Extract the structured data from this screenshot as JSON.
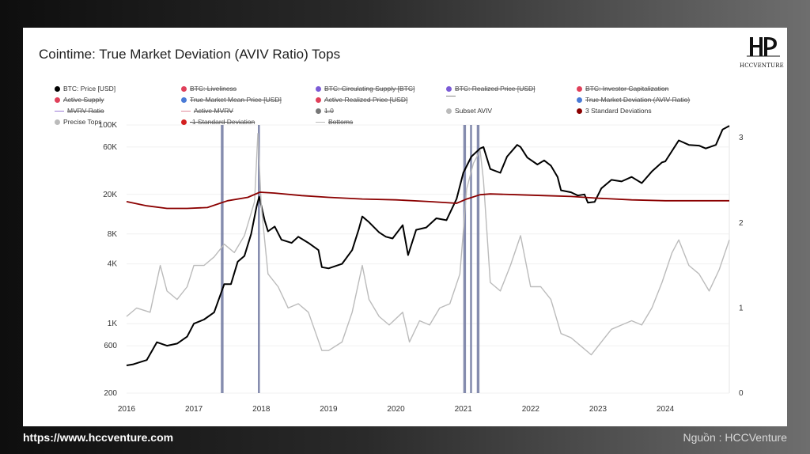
{
  "title": "Cointime: True Market Deviation (AVIV Ratio) Tops",
  "brand": {
    "logo_text": "HCCVENTURE",
    "url": "https://www.hccventure.com",
    "source": "Nguồn : HCCVenture"
  },
  "legend": [
    {
      "label": "BTC: Price [USD]",
      "color": "#000000",
      "active": true,
      "kind": "dot"
    },
    {
      "label": "BTC: Liveliness",
      "color": "#e0405a",
      "active": false,
      "kind": "dot"
    },
    {
      "label": "BTC: Circulating Supply [BTC]",
      "color": "#7b5bd6",
      "active": false,
      "kind": "dot"
    },
    {
      "label": "BTC: Realized Price [USD]",
      "color": "#7b5bd6",
      "active": false,
      "kind": "dot"
    },
    {
      "label": "BTC: Investor Capitalization",
      "color": "#e0405a",
      "active": false,
      "kind": "dot"
    },
    {
      "label": "Active Supply",
      "color": "#e0405a",
      "active": false,
      "kind": "dot"
    },
    {
      "label": "True Market Mean Price [USD]",
      "color": "#4a7ad6",
      "active": false,
      "kind": "dot"
    },
    {
      "label": "Active Realized Price [USD]",
      "color": "#e0405a",
      "active": false,
      "kind": "dot"
    },
    {
      "label": "",
      "color": "#888888",
      "active": false,
      "kind": "line"
    },
    {
      "label": "True Market Deviation (AVIV Ratio)",
      "color": "#4a7ad6",
      "active": false,
      "kind": "dot"
    },
    {
      "label": "MVRV Ratio",
      "color": "#9a7ad6",
      "active": false,
      "kind": "line"
    },
    {
      "label": "Active MVRV",
      "color": "#e08a9a",
      "active": false,
      "kind": "line"
    },
    {
      "label": "1.0",
      "color": "#777777",
      "active": false,
      "kind": "dot"
    },
    {
      "label": "Subset AVIV",
      "color": "#bbbbbb",
      "active": true,
      "kind": "dot"
    },
    {
      "label": "3 Standard Deviations",
      "color": "#8b0000",
      "active": true,
      "kind": "dot"
    },
    {
      "label": "Precise Tops",
      "color": "#bbbbbb",
      "active": true,
      "kind": "dot"
    },
    {
      "label": "-1 Standard Deviation",
      "color": "#d32020",
      "active": false,
      "kind": "dot"
    },
    {
      "label": "Bottoms",
      "color": "#bbbbbb",
      "active": false,
      "kind": "line"
    }
  ],
  "chart_data": {
    "type": "line",
    "x_ticks": [
      "2016",
      "2017",
      "2018",
      "2019",
      "2020",
      "2021",
      "2022",
      "2023",
      "2024"
    ],
    "xlim": [
      2016.0,
      2024.95
    ],
    "left_axis": {
      "scale": "log",
      "ticks": [
        "100K",
        "60K",
        "20K",
        "8K",
        "4K",
        "1K",
        "600",
        "200"
      ],
      "tick_values": [
        100000,
        60000,
        20000,
        8000,
        4000,
        1000,
        600,
        200
      ],
      "ylim": [
        200,
        100000
      ]
    },
    "right_axis": {
      "scale": "linear",
      "ticks": [
        "3",
        "2",
        "1",
        "0"
      ],
      "tick_values": [
        3,
        2,
        1,
        0
      ],
      "ylim": [
        0,
        3.15
      ]
    },
    "series": [
      {
        "name": "BTC: Price [USD]",
        "color": "#000000",
        "axis": "left",
        "points": [
          [
            2016.0,
            380
          ],
          [
            2016.1,
            390
          ],
          [
            2016.3,
            430
          ],
          [
            2016.45,
            650
          ],
          [
            2016.6,
            600
          ],
          [
            2016.75,
            630
          ],
          [
            2016.9,
            740
          ],
          [
            2017.0,
            1000
          ],
          [
            2017.15,
            1100
          ],
          [
            2017.3,
            1300
          ],
          [
            2017.45,
            2500
          ],
          [
            2017.55,
            2500
          ],
          [
            2017.65,
            4200
          ],
          [
            2017.75,
            4800
          ],
          [
            2017.85,
            8000
          ],
          [
            2017.93,
            15000
          ],
          [
            2017.97,
            19000
          ],
          [
            2018.05,
            11000
          ],
          [
            2018.1,
            8500
          ],
          [
            2018.2,
            9500
          ],
          [
            2018.3,
            7000
          ],
          [
            2018.45,
            6500
          ],
          [
            2018.55,
            7500
          ],
          [
            2018.7,
            6500
          ],
          [
            2018.85,
            5500
          ],
          [
            2018.9,
            3700
          ],
          [
            2019.0,
            3600
          ],
          [
            2019.2,
            4000
          ],
          [
            2019.35,
            5500
          ],
          [
            2019.45,
            9000
          ],
          [
            2019.5,
            12000
          ],
          [
            2019.6,
            10500
          ],
          [
            2019.75,
            8300
          ],
          [
            2019.85,
            7500
          ],
          [
            2019.95,
            7200
          ],
          [
            2020.1,
            9800
          ],
          [
            2020.18,
            4900
          ],
          [
            2020.3,
            8800
          ],
          [
            2020.45,
            9300
          ],
          [
            2020.6,
            11500
          ],
          [
            2020.75,
            11000
          ],
          [
            2020.9,
            18000
          ],
          [
            2021.0,
            33000
          ],
          [
            2021.12,
            48000
          ],
          [
            2021.25,
            58000
          ],
          [
            2021.3,
            60000
          ],
          [
            2021.4,
            36000
          ],
          [
            2021.55,
            33000
          ],
          [
            2021.65,
            48000
          ],
          [
            2021.8,
            63000
          ],
          [
            2021.85,
            60000
          ],
          [
            2021.95,
            47000
          ],
          [
            2022.1,
            40000
          ],
          [
            2022.2,
            44000
          ],
          [
            2022.3,
            39000
          ],
          [
            2022.4,
            30000
          ],
          [
            2022.45,
            22000
          ],
          [
            2022.6,
            21000
          ],
          [
            2022.7,
            19500
          ],
          [
            2022.8,
            20000
          ],
          [
            2022.85,
            16500
          ],
          [
            2022.95,
            16800
          ],
          [
            2023.05,
            23000
          ],
          [
            2023.2,
            28000
          ],
          [
            2023.35,
            27000
          ],
          [
            2023.5,
            30000
          ],
          [
            2023.65,
            26000
          ],
          [
            2023.8,
            34000
          ],
          [
            2023.95,
            42000
          ],
          [
            2024.0,
            43000
          ],
          [
            2024.15,
            62000
          ],
          [
            2024.2,
            70000
          ],
          [
            2024.35,
            63000
          ],
          [
            2024.5,
            62000
          ],
          [
            2024.6,
            58000
          ],
          [
            2024.75,
            63000
          ],
          [
            2024.85,
            90000
          ],
          [
            2024.95,
            98000
          ]
        ]
      },
      {
        "name": "Subset AVIV",
        "color": "#bbbbbb",
        "axis": "right",
        "points": [
          [
            2016.0,
            0.9
          ],
          [
            2016.15,
            1.0
          ],
          [
            2016.35,
            0.95
          ],
          [
            2016.5,
            1.5
          ],
          [
            2016.6,
            1.2
          ],
          [
            2016.75,
            1.1
          ],
          [
            2016.9,
            1.25
          ],
          [
            2017.0,
            1.5
          ],
          [
            2017.15,
            1.5
          ],
          [
            2017.3,
            1.6
          ],
          [
            2017.45,
            1.75
          ],
          [
            2017.6,
            1.65
          ],
          [
            2017.75,
            1.85
          ],
          [
            2017.9,
            2.25
          ],
          [
            2017.95,
            3.05
          ],
          [
            2018.0,
            2.2
          ],
          [
            2018.1,
            1.4
          ],
          [
            2018.25,
            1.25
          ],
          [
            2018.4,
            1.0
          ],
          [
            2018.55,
            1.05
          ],
          [
            2018.7,
            0.95
          ],
          [
            2018.9,
            0.5
          ],
          [
            2019.0,
            0.5
          ],
          [
            2019.2,
            0.6
          ],
          [
            2019.35,
            0.95
          ],
          [
            2019.5,
            1.5
          ],
          [
            2019.6,
            1.1
          ],
          [
            2019.75,
            0.9
          ],
          [
            2019.9,
            0.8
          ],
          [
            2020.1,
            0.95
          ],
          [
            2020.2,
            0.6
          ],
          [
            2020.35,
            0.85
          ],
          [
            2020.5,
            0.8
          ],
          [
            2020.65,
            1.0
          ],
          [
            2020.8,
            1.05
          ],
          [
            2020.95,
            1.4
          ],
          [
            2021.05,
            2.4
          ],
          [
            2021.15,
            2.7
          ],
          [
            2021.25,
            2.85
          ],
          [
            2021.3,
            2.5
          ],
          [
            2021.4,
            1.3
          ],
          [
            2021.55,
            1.2
          ],
          [
            2021.7,
            1.5
          ],
          [
            2021.85,
            1.85
          ],
          [
            2022.0,
            1.25
          ],
          [
            2022.15,
            1.25
          ],
          [
            2022.3,
            1.1
          ],
          [
            2022.45,
            0.7
          ],
          [
            2022.6,
            0.65
          ],
          [
            2022.75,
            0.55
          ],
          [
            2022.9,
            0.45
          ],
          [
            2023.05,
            0.6
          ],
          [
            2023.2,
            0.75
          ],
          [
            2023.35,
            0.8
          ],
          [
            2023.5,
            0.85
          ],
          [
            2023.65,
            0.8
          ],
          [
            2023.8,
            1.0
          ],
          [
            2023.95,
            1.3
          ],
          [
            2024.1,
            1.65
          ],
          [
            2024.2,
            1.8
          ],
          [
            2024.35,
            1.5
          ],
          [
            2024.5,
            1.4
          ],
          [
            2024.65,
            1.2
          ],
          [
            2024.8,
            1.45
          ],
          [
            2024.95,
            1.8
          ]
        ]
      },
      {
        "name": "3 Standard Deviations",
        "color": "#8b0000",
        "axis": "right",
        "points": [
          [
            2016.0,
            2.25
          ],
          [
            2016.3,
            2.2
          ],
          [
            2016.6,
            2.17
          ],
          [
            2016.9,
            2.17
          ],
          [
            2017.2,
            2.18
          ],
          [
            2017.5,
            2.26
          ],
          [
            2017.8,
            2.3
          ],
          [
            2017.98,
            2.36
          ],
          [
            2018.2,
            2.35
          ],
          [
            2018.6,
            2.32
          ],
          [
            2019.0,
            2.3
          ],
          [
            2019.5,
            2.28
          ],
          [
            2020.0,
            2.27
          ],
          [
            2020.5,
            2.25
          ],
          [
            2020.9,
            2.23
          ],
          [
            2021.05,
            2.28
          ],
          [
            2021.25,
            2.33
          ],
          [
            2021.4,
            2.34
          ],
          [
            2021.8,
            2.33
          ],
          [
            2022.2,
            2.32
          ],
          [
            2022.6,
            2.31
          ],
          [
            2023.0,
            2.29
          ],
          [
            2023.5,
            2.27
          ],
          [
            2024.0,
            2.26
          ],
          [
            2024.3,
            2.26
          ],
          [
            2024.6,
            2.26
          ],
          [
            2024.95,
            2.26
          ]
        ]
      }
    ],
    "precise_tops": {
      "name": "Precise Tops",
      "color": "#7078a0",
      "ranges": [
        [
          2017.4,
          2017.44
        ],
        [
          2017.95,
          2017.98
        ],
        [
          2021.0,
          2021.04
        ],
        [
          2021.1,
          2021.13
        ],
        [
          2021.2,
          2021.24
        ]
      ]
    }
  }
}
